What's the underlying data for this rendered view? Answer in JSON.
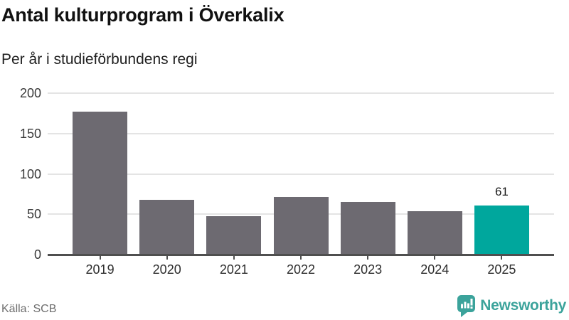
{
  "header": {
    "title": "Antal kulturprogram i Överkalix",
    "subtitle": "Per år i studieförbundens regi"
  },
  "footer": {
    "source": "Källa: SCB",
    "brand_name": "Newsworthy"
  },
  "colors": {
    "bar": "#6d6a71",
    "highlight": "#00a79d",
    "gridline": "#e4e4e4",
    "axis": "#4f4f4f",
    "brand_teal": "#3ba39b",
    "background": "#ffffff"
  },
  "chart_data": {
    "type": "bar",
    "title": "Antal kulturprogram i Överkalix",
    "subtitle": "Per år i studieförbundens regi",
    "categories": [
      "2019",
      "2020",
      "2021",
      "2022",
      "2023",
      "2024",
      "2025"
    ],
    "values": [
      177,
      68,
      48,
      71,
      65,
      54,
      61
    ],
    "highlight_category": "2025",
    "value_labels": {
      "2025": "61"
    },
    "xlabel": "",
    "ylabel": "",
    "ylim": [
      0,
      200
    ],
    "yticks": [
      0,
      50,
      100,
      150,
      200
    ],
    "grid": "horizontal",
    "legend": "none",
    "source": "Källa: SCB"
  }
}
